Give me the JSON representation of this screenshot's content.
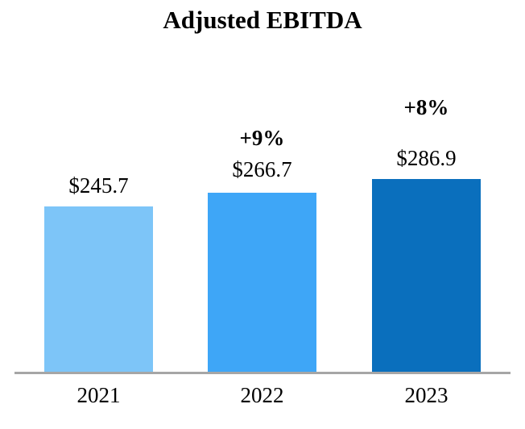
{
  "chart_data": {
    "type": "bar",
    "title": "Adjusted EBITDA",
    "categories": [
      "2021",
      "2022",
      "2023"
    ],
    "values": [
      245.7,
      266.7,
      286.9
    ],
    "bars": [
      {
        "category": "2021",
        "value": 245.7,
        "value_label": "$245.7",
        "growth_label": "",
        "color": "#7DC5F8"
      },
      {
        "category": "2022",
        "value": 266.7,
        "value_label": "$266.7",
        "growth_label": "+9%",
        "color": "#3EA6F7"
      },
      {
        "category": "2023",
        "value": 286.9,
        "value_label": "$286.9",
        "growth_label": "+8%",
        "color": "#0A6FBD"
      }
    ],
    "xlabel": "",
    "ylabel": "",
    "ylim": [
      0,
      480
    ],
    "grid": false,
    "legend": false,
    "axis_line_color": "#A6A6A6",
    "value_prefix": "$"
  }
}
